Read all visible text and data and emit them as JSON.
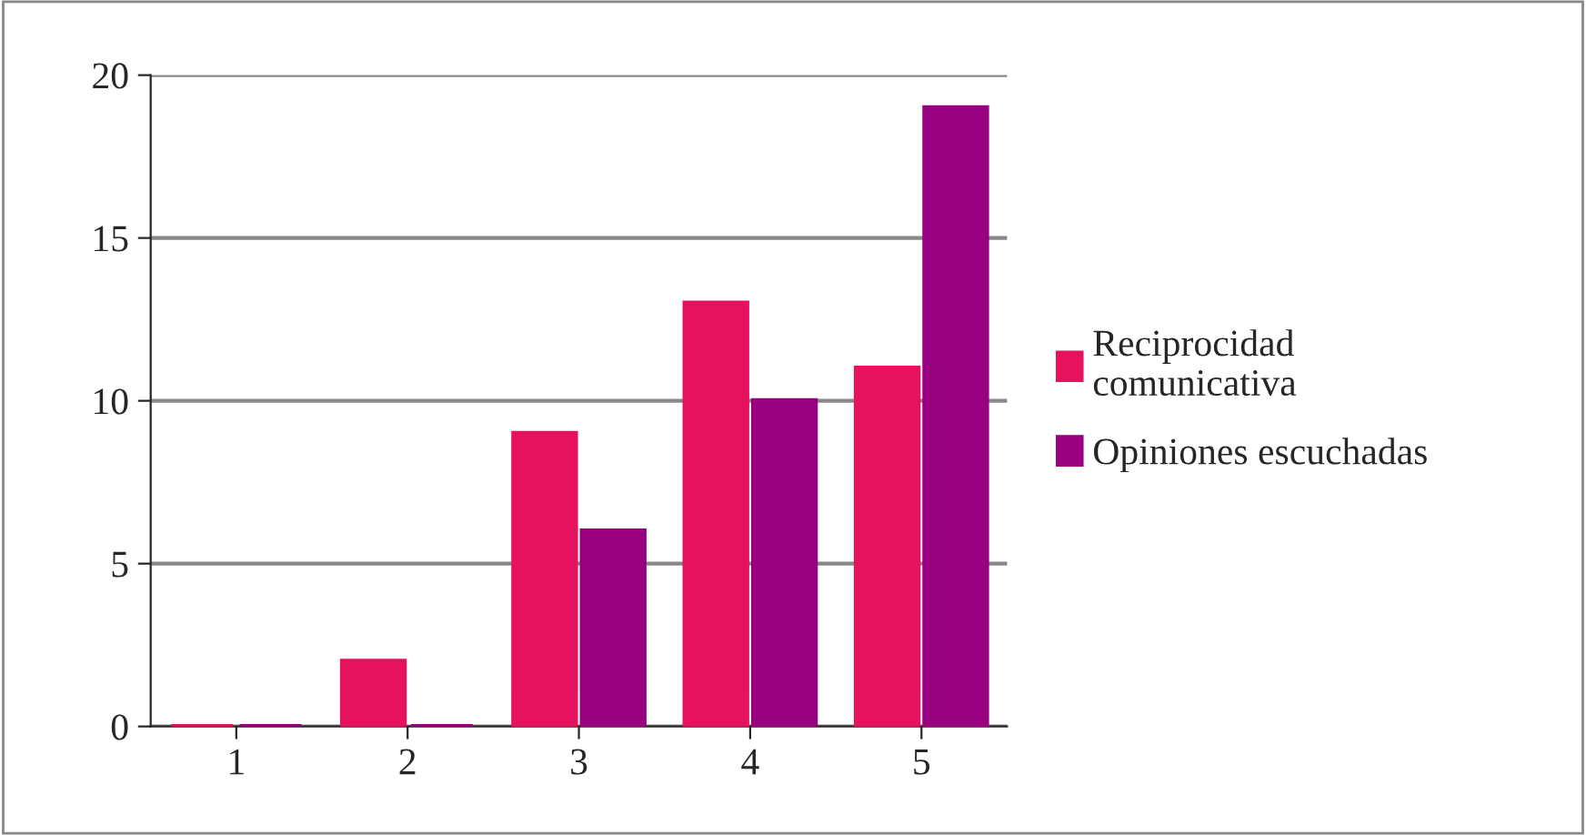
{
  "chart_data": {
    "type": "bar",
    "categories": [
      "1",
      "2",
      "3",
      "4",
      "5"
    ],
    "series": [
      {
        "name": "Reciprocidad\ncomunicativa",
        "color": "#e6125e",
        "values": [
          0,
          2,
          9,
          13,
          11
        ]
      },
      {
        "name": "Opiniones escuchadas",
        "color": "#990080",
        "values": [
          0,
          0,
          6,
          10,
          19
        ]
      }
    ],
    "ylim": [
      0,
      20
    ],
    "yticks": [
      0,
      5,
      10,
      15,
      20
    ],
    "grid": "y",
    "legend": "right"
  }
}
